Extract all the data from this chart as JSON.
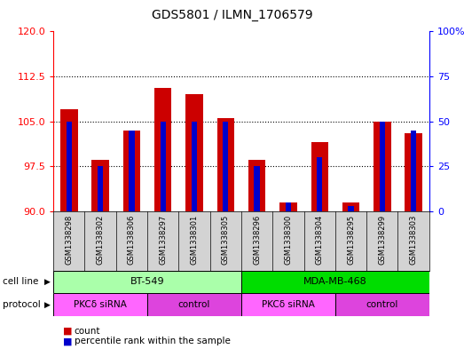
{
  "title": "GDS5801 / ILMN_1706579",
  "samples": [
    "GSM1338298",
    "GSM1338302",
    "GSM1338306",
    "GSM1338297",
    "GSM1338301",
    "GSM1338305",
    "GSM1338296",
    "GSM1338300",
    "GSM1338304",
    "GSM1338295",
    "GSM1338299",
    "GSM1338303"
  ],
  "red_values": [
    107.0,
    98.5,
    103.5,
    110.5,
    109.5,
    105.5,
    98.5,
    91.5,
    101.5,
    91.5,
    105.0,
    103.0
  ],
  "blue_values": [
    50.0,
    25.0,
    45.0,
    50.0,
    50.0,
    50.0,
    25.0,
    5.0,
    30.0,
    3.0,
    50.0,
    45.0
  ],
  "y_min": 90,
  "y_max": 120,
  "y_ticks_left": [
    90,
    97.5,
    105,
    112.5,
    120
  ],
  "y_ticks_right": [
    0,
    25,
    50,
    75,
    100
  ],
  "grid_lines": [
    97.5,
    105,
    112.5
  ],
  "cell_line_groups": [
    {
      "label": "BT-549",
      "start": 0,
      "end": 6,
      "color": "#aaffaa"
    },
    {
      "label": "MDA-MB-468",
      "start": 6,
      "end": 12,
      "color": "#00dd00"
    }
  ],
  "protocol_groups": [
    {
      "label": "PKCδ siRNA",
      "start": 0,
      "end": 3,
      "color": "#ff66ff"
    },
    {
      "label": "control",
      "start": 3,
      "end": 6,
      "color": "#dd44dd"
    },
    {
      "label": "PKCδ siRNA",
      "start": 6,
      "end": 9,
      "color": "#ff66ff"
    },
    {
      "label": "control",
      "start": 9,
      "end": 12,
      "color": "#dd44dd"
    }
  ],
  "red_color": "#cc0000",
  "blue_color": "#0000cc",
  "sample_bg": "#d3d3d3",
  "plot_bg": "#ffffff"
}
